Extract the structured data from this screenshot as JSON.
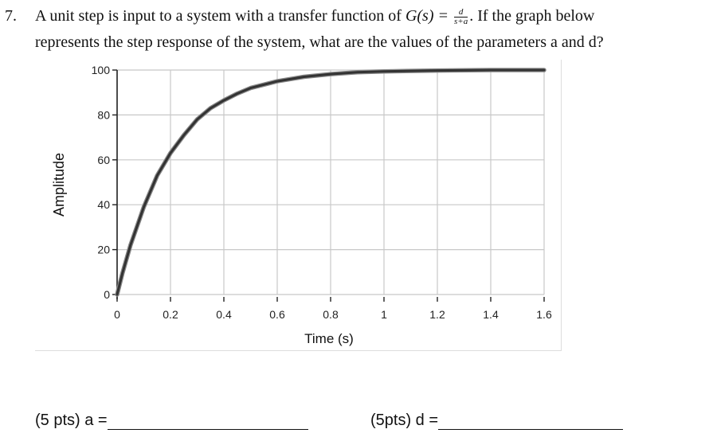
{
  "question": {
    "number": "7.",
    "line1_pre": "A unit step is input to a system with a transfer function of",
    "func_name": "G(s) =",
    "frac_num": "d",
    "frac_den": "s+a",
    "line1_post": ". If the graph below",
    "line2": "represents the step response of the system, what are the values of the parameters a and d?"
  },
  "chart_data": {
    "type": "line",
    "title": "",
    "xlabel": "Time (s)",
    "ylabel": "Amplitude",
    "xlim": [
      0,
      1.6
    ],
    "ylim": [
      0,
      100
    ],
    "xticks": [
      "0",
      "0.2",
      "0.4",
      "0.6",
      "0.8",
      "1",
      "1.2",
      "1.4",
      "1.6"
    ],
    "yticks": [
      "0",
      "20",
      "40",
      "60",
      "80",
      "100"
    ],
    "grid": true,
    "series": [
      {
        "color": "#333333",
        "x": [
          0,
          0.02,
          0.05,
          0.1,
          0.15,
          0.2,
          0.25,
          0.3,
          0.35,
          0.4,
          0.45,
          0.5,
          0.55,
          0.6,
          0.7,
          0.8,
          0.9,
          1.0,
          1.2,
          1.4,
          1.6
        ],
        "y": [
          0,
          9.5,
          22,
          39,
          53,
          63,
          71,
          78,
          83,
          86.5,
          89.5,
          92,
          93.5,
          95,
          97,
          98.2,
          99,
          99.4,
          99.8,
          100,
          100
        ]
      }
    ]
  },
  "answers": {
    "a_label": "(5 pts) a =",
    "d_label": "(5pts) d ="
  }
}
